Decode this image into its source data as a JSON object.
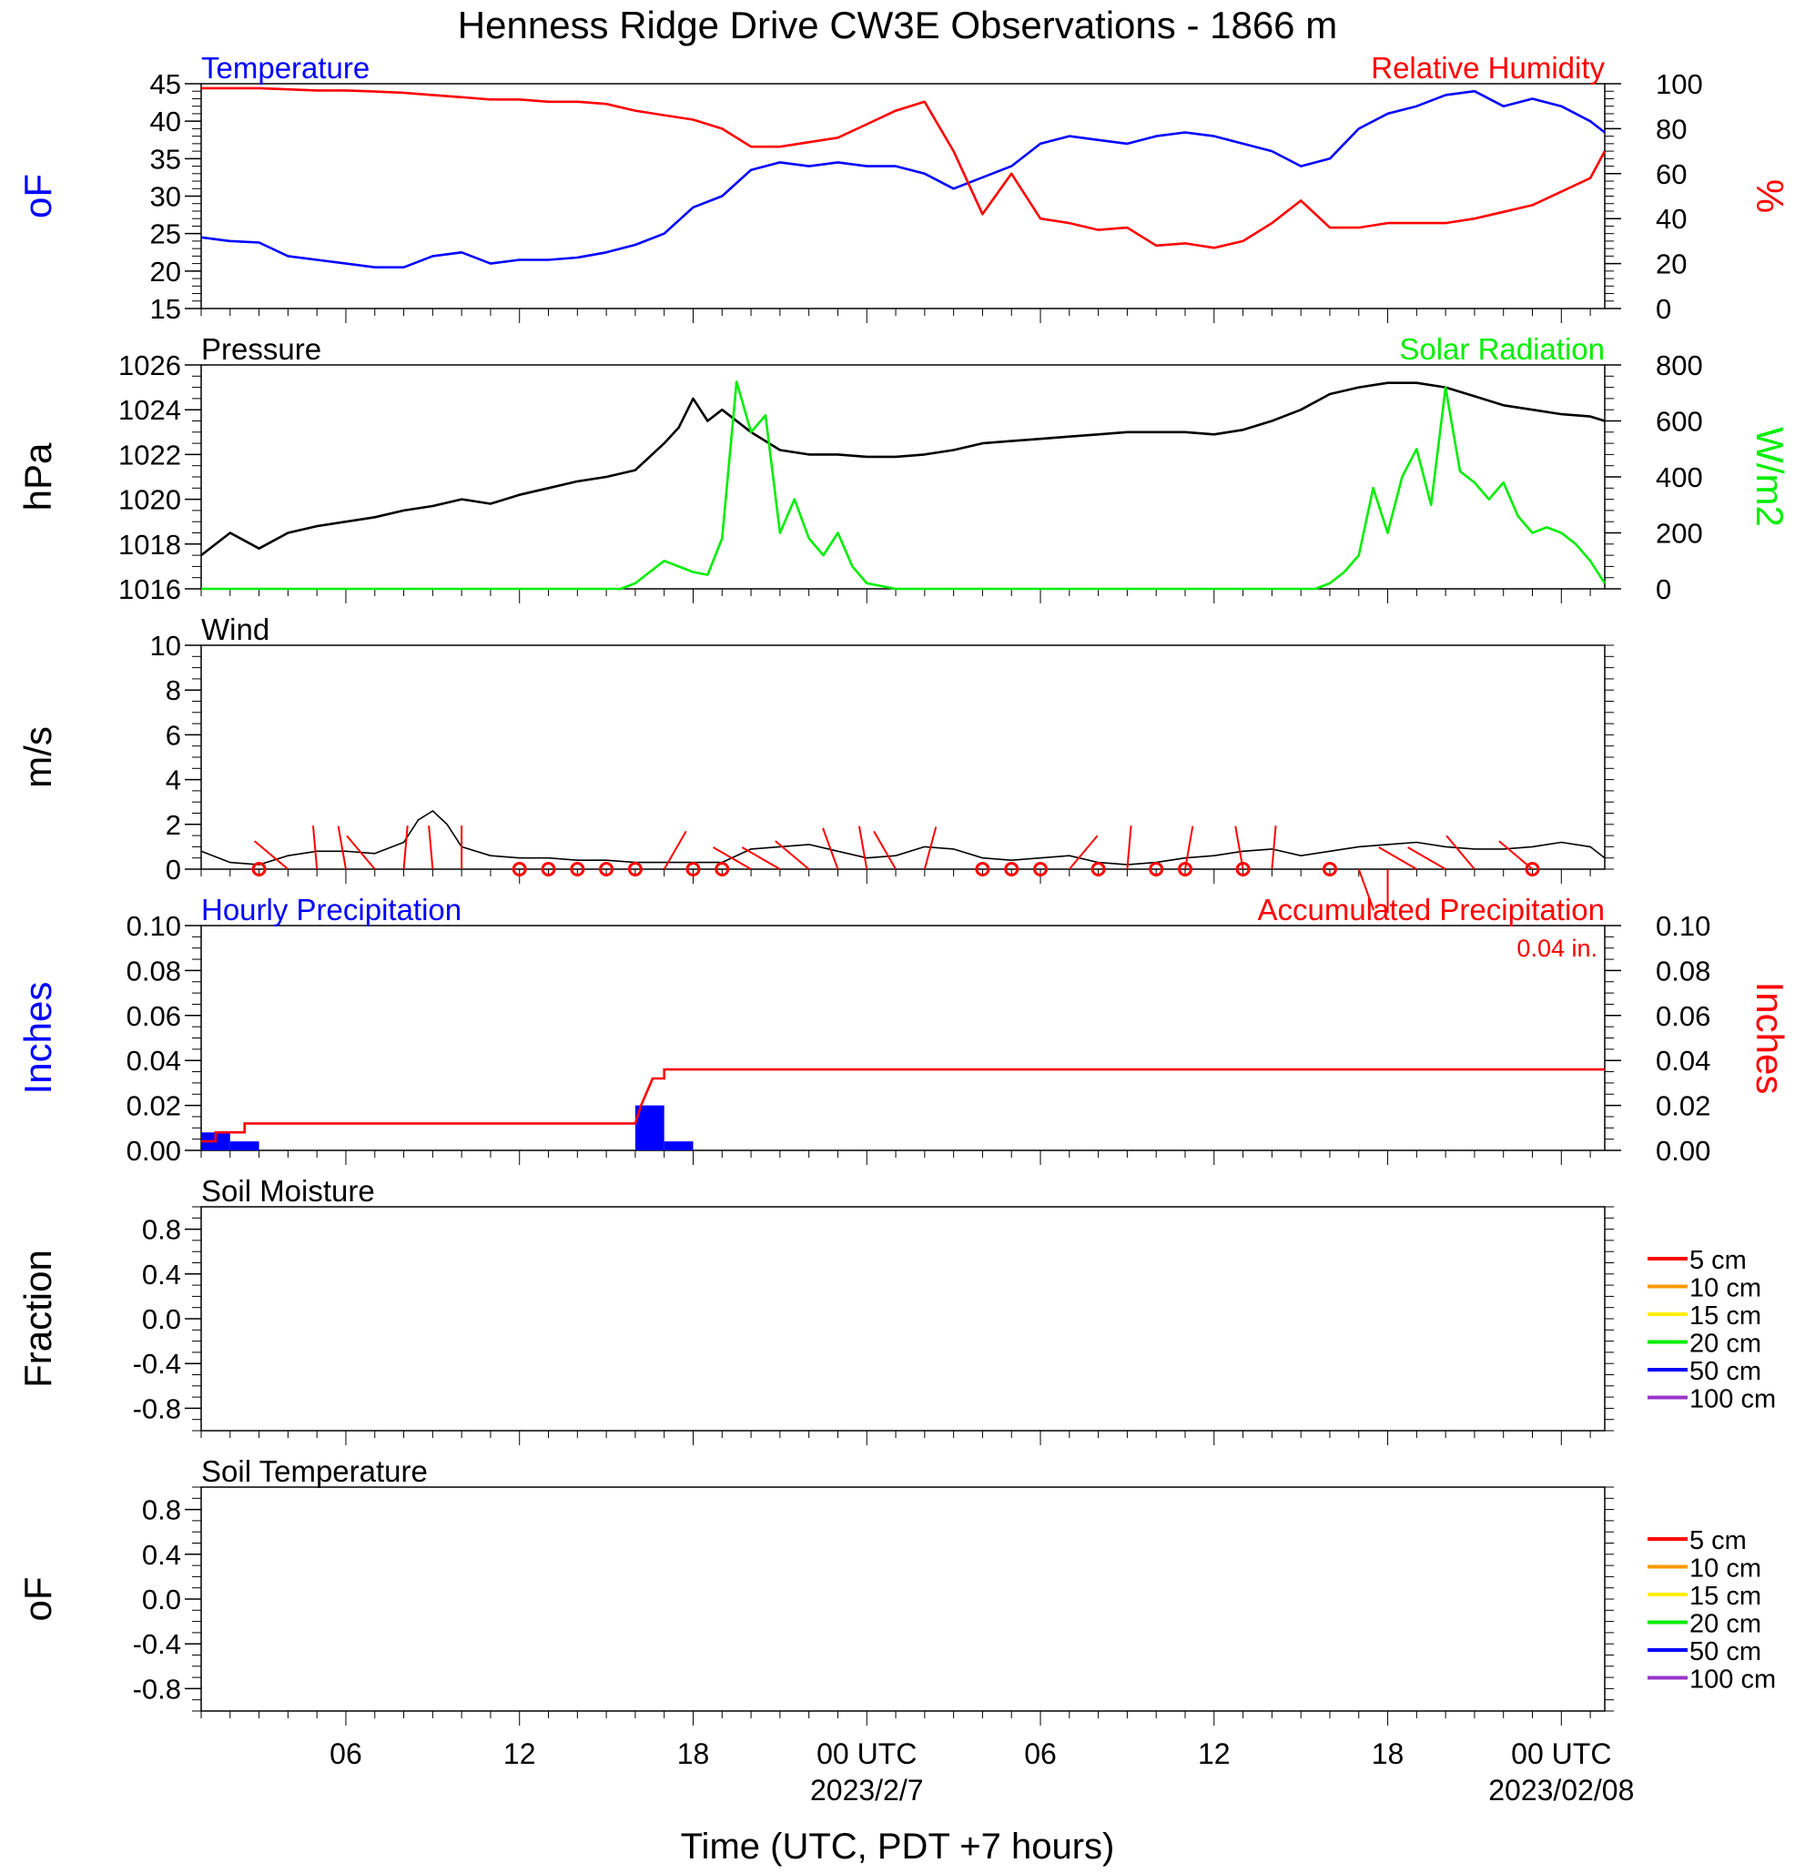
{
  "title": "Henness Ridge Drive CW3E Observations - 1866 m",
  "xlabel": "Time (UTC, PDT +7 hours)",
  "x_axis": {
    "range_hours": [
      0,
      48.5
    ],
    "tick_labels": [
      {
        "hour": 5,
        "label": "06"
      },
      {
        "hour": 11,
        "label": "12"
      },
      {
        "hour": 17,
        "label": "18"
      },
      {
        "hour": 23,
        "label": "00 UTC",
        "date": "2023/2/7"
      },
      {
        "hour": 29,
        "label": "06"
      },
      {
        "hour": 35,
        "label": "12"
      },
      {
        "hour": 41,
        "label": "18"
      },
      {
        "hour": 47,
        "label": "00 UTC",
        "date": "2023/02/08"
      }
    ]
  },
  "colors": {
    "temperature": "#0000ff",
    "humidity": "#ff0000",
    "pressure": "#000000",
    "solar": "#00ee00",
    "wind_speed": "#000000",
    "wind_barb": "#ff0000",
    "hourly_precip": "#0000ff",
    "accum_precip": "#ff0000"
  },
  "chart_data": [
    {
      "type": "line",
      "name": "temperature-humidity",
      "left_title": "Temperature",
      "right_title": "Relative Humidity",
      "left_ylabel": "oF",
      "right_ylabel": "%",
      "left_ylim": [
        15,
        45
      ],
      "right_ylim": [
        0,
        100
      ],
      "left_ticks": [
        "15",
        "20",
        "25",
        "30",
        "35",
        "40",
        "45"
      ],
      "right_ticks": [
        "0",
        "20",
        "40",
        "60",
        "80",
        "100"
      ],
      "series": [
        {
          "name": "Temperature",
          "axis": "left",
          "x": [
            0,
            1,
            2,
            3,
            4,
            5,
            6,
            7,
            8,
            9,
            10,
            11,
            12,
            13,
            14,
            15,
            16,
            17,
            18,
            19,
            20,
            21,
            22,
            23,
            24,
            25,
            26,
            27,
            28,
            29,
            30,
            31,
            32,
            33,
            34,
            35,
            36,
            37,
            38,
            39,
            40,
            41,
            42,
            43,
            44,
            45,
            46,
            47,
            48,
            48.5
          ],
          "y": [
            24.5,
            24,
            23.8,
            22,
            21.5,
            21,
            20.5,
            20.5,
            22,
            22.5,
            21,
            21.5,
            21.5,
            21.8,
            22.5,
            23.5,
            25,
            28.5,
            30,
            33.5,
            34.5,
            34,
            34.5,
            34,
            34,
            33,
            31,
            32.5,
            34,
            37,
            38,
            37.5,
            37,
            38,
            38.5,
            38,
            37,
            36,
            34,
            35,
            39,
            41,
            42,
            43.5,
            44,
            42,
            43,
            42,
            40,
            38.5
          ]
        },
        {
          "name": "Relative Humidity",
          "axis": "right",
          "x": [
            0,
            1,
            2,
            3,
            4,
            5,
            6,
            7,
            8,
            9,
            10,
            11,
            12,
            13,
            14,
            15,
            16,
            17,
            18,
            19,
            20,
            21,
            22,
            23,
            24,
            25,
            26,
            27,
            28,
            29,
            30,
            31,
            32,
            33,
            34,
            35,
            36,
            37,
            38,
            39,
            40,
            41,
            42,
            43,
            44,
            45,
            46,
            47,
            48,
            48.5
          ],
          "y": [
            98,
            98,
            98,
            97.5,
            97,
            97,
            96.5,
            96,
            95,
            94,
            93,
            93,
            92,
            92,
            91,
            88,
            86,
            84,
            80,
            72,
            72,
            74,
            76,
            82,
            88,
            92,
            70,
            42,
            60,
            40,
            38,
            35,
            36,
            28,
            29,
            27,
            30,
            38,
            48,
            36,
            36,
            38,
            38,
            38,
            40,
            43,
            46,
            52,
            58,
            70
          ]
        }
      ]
    },
    {
      "type": "line",
      "name": "pressure-solar",
      "left_title": "Pressure",
      "right_title": "Solar Radiation",
      "left_ylabel": "hPa",
      "right_ylabel": "W/m2",
      "left_ylim": [
        1016,
        1026
      ],
      "right_ylim": [
        0,
        800
      ],
      "left_ticks": [
        "1016",
        "1018",
        "1020",
        "1022",
        "1024",
        "1026"
      ],
      "right_ticks": [
        "0",
        "200",
        "400",
        "600",
        "800"
      ],
      "series": [
        {
          "name": "Pressure",
          "axis": "left",
          "x": [
            0,
            1,
            2,
            3,
            4,
            5,
            6,
            7,
            8,
            9,
            10,
            11,
            12,
            13,
            14,
            15,
            16,
            16.5,
            17,
            17.5,
            18,
            19,
            20,
            21,
            22,
            23,
            24,
            25,
            26,
            27,
            28,
            29,
            30,
            31,
            32,
            33,
            34,
            35,
            36,
            37,
            38,
            39,
            40,
            41,
            42,
            43,
            44,
            45,
            46,
            47,
            48,
            48.5
          ],
          "y": [
            1017.5,
            1018.5,
            1017.8,
            1018.5,
            1018.8,
            1019,
            1019.2,
            1019.5,
            1019.7,
            1020,
            1019.8,
            1020.2,
            1020.5,
            1020.8,
            1021,
            1021.3,
            1022.5,
            1023.2,
            1024.5,
            1023.5,
            1024,
            1023,
            1022.2,
            1022,
            1022,
            1021.9,
            1021.9,
            1022,
            1022.2,
            1022.5,
            1022.6,
            1022.7,
            1022.8,
            1022.9,
            1023,
            1023,
            1023,
            1022.9,
            1023.1,
            1023.5,
            1024,
            1024.7,
            1025,
            1025.2,
            1025.2,
            1025,
            1024.6,
            1024.2,
            1024,
            1023.8,
            1023.7,
            1023.5
          ]
        },
        {
          "name": "Solar Radiation",
          "axis": "right",
          "x": [
            0,
            14.5,
            15,
            15.5,
            16,
            16.5,
            17,
            17.5,
            18,
            18.5,
            19,
            19.5,
            20,
            20.5,
            21,
            21.5,
            22,
            22.5,
            23,
            24,
            38.5,
            39,
            39.5,
            40,
            40.5,
            41,
            41.5,
            42,
            42.5,
            43,
            43.5,
            44,
            44.5,
            45,
            45.5,
            46,
            46.5,
            47,
            47.5,
            48,
            48.5
          ],
          "y": [
            0,
            0,
            20,
            60,
            100,
            80,
            60,
            50,
            180,
            740,
            560,
            620,
            200,
            320,
            180,
            120,
            200,
            80,
            20,
            0,
            0,
            20,
            60,
            120,
            360,
            200,
            400,
            500,
            300,
            720,
            420,
            380,
            320,
            380,
            260,
            200,
            220,
            200,
            160,
            100,
            20
          ]
        }
      ]
    },
    {
      "type": "line",
      "name": "wind",
      "left_title": "Wind",
      "left_ylabel": "m/s",
      "left_ylim": [
        0,
        10
      ],
      "left_ticks": [
        "0",
        "2",
        "4",
        "6",
        "8",
        "10"
      ],
      "series": [
        {
          "name": "Wind",
          "x": [
            0,
            1,
            2,
            3,
            4,
            5,
            6,
            7,
            7.5,
            8,
            8.5,
            9,
            10,
            11,
            12,
            13,
            14,
            15,
            16,
            17,
            18,
            19,
            20,
            21,
            22,
            23,
            24,
            25,
            26,
            27,
            28,
            29,
            30,
            31,
            32,
            33,
            34,
            35,
            36,
            37,
            38,
            39,
            40,
            41,
            42,
            43,
            44,
            45,
            46,
            47,
            48,
            48.5
          ],
          "y": [
            0.8,
            0.3,
            0.2,
            0.6,
            0.8,
            0.8,
            0.7,
            1.2,
            2.2,
            2.6,
            2.0,
            1.0,
            0.6,
            0.5,
            0.5,
            0.4,
            0.4,
            0.3,
            0.3,
            0.3,
            0.3,
            0.9,
            1.0,
            1.1,
            0.8,
            0.5,
            0.6,
            1.0,
            0.9,
            0.5,
            0.4,
            0.5,
            0.6,
            0.3,
            0.2,
            0.3,
            0.5,
            0.6,
            0.8,
            0.9,
            0.6,
            0.8,
            1.0,
            1.1,
            1.2,
            1.0,
            0.9,
            0.9,
            1.0,
            1.2,
            1.0,
            0.5
          ]
        }
      ],
      "calm_hours": [
        2,
        11,
        12,
        13,
        14,
        15,
        17,
        18,
        27,
        28,
        29,
        31,
        33,
        34,
        36,
        39,
        46
      ],
      "barbs": [
        {
          "hour": 3,
          "dir": 310
        },
        {
          "hour": 4,
          "dir": 355
        },
        {
          "hour": 5,
          "dir": 350
        },
        {
          "hour": 6,
          "dir": 320
        },
        {
          "hour": 7,
          "dir": 5
        },
        {
          "hour": 8,
          "dir": 355
        },
        {
          "hour": 9,
          "dir": 360
        },
        {
          "hour": 16,
          "dir": 30
        },
        {
          "hour": 19,
          "dir": 300
        },
        {
          "hour": 20,
          "dir": 300
        },
        {
          "hour": 21,
          "dir": 310
        },
        {
          "hour": 22,
          "dir": 340
        },
        {
          "hour": 23,
          "dir": 350
        },
        {
          "hour": 24,
          "dir": 330
        },
        {
          "hour": 25,
          "dir": 15
        },
        {
          "hour": 30,
          "dir": 40
        },
        {
          "hour": 32,
          "dir": 5
        },
        {
          "hour": 34,
          "dir": 10
        },
        {
          "hour": 36,
          "dir": 350
        },
        {
          "hour": 37,
          "dir": 5
        },
        {
          "hour": 40,
          "dir": 160
        },
        {
          "hour": 41,
          "dir": 180
        },
        {
          "hour": 42,
          "dir": 300
        },
        {
          "hour": 43,
          "dir": 300
        },
        {
          "hour": 44,
          "dir": 320
        },
        {
          "hour": 46,
          "dir": 310
        }
      ]
    },
    {
      "type": "bar",
      "name": "precipitation",
      "left_title": "Hourly Precipitation",
      "right_title": "Accumulated Precipitation",
      "total_label": "0.04 in.",
      "left_ylabel": "Inches",
      "right_ylabel": "Inches",
      "left_ylim": [
        0,
        0.1
      ],
      "right_ylim": [
        0,
        0.1
      ],
      "left_ticks": [
        "0.00",
        "0.02",
        "0.04",
        "0.06",
        "0.08",
        "0.10"
      ],
      "right_ticks": [
        "0.00",
        "0.02",
        "0.04",
        "0.06",
        "0.08",
        "0.10"
      ],
      "hourly_bars": [
        {
          "hour": 0,
          "value": 0.008
        },
        {
          "hour": 1,
          "value": 0.004
        },
        {
          "hour": 15,
          "value": 0.02
        },
        {
          "hour": 16,
          "value": 0.004
        }
      ],
      "accumulated": {
        "x": [
          0,
          0.5,
          1.5,
          30,
          15,
          15.3,
          16,
          48.5
        ],
        "y": [
          0.004,
          0.008,
          0.012,
          0.012,
          0.012,
          0.02,
          0.036,
          0.036
        ]
      }
    },
    {
      "type": "line",
      "name": "soil-moisture",
      "left_title": "Soil Moisture",
      "left_ylabel": "Fraction",
      "left_ylim": [
        -1,
        1
      ],
      "left_ticks": [
        "-0.8",
        "-0.4",
        "0.0",
        "0.4",
        "0.8"
      ],
      "legend": [
        "5 cm",
        "10 cm",
        "15 cm",
        "20 cm",
        "50 cm",
        "100 cm"
      ]
    },
    {
      "type": "line",
      "name": "soil-temperature",
      "left_title": "Soil Temperature",
      "left_ylabel": "oF",
      "left_ylim": [
        -1,
        1
      ],
      "left_ticks": [
        "-0.8",
        "-0.4",
        "0.0",
        "0.4",
        "0.8"
      ],
      "legend": [
        "5 cm",
        "10 cm",
        "15 cm",
        "20 cm",
        "50 cm",
        "100 cm"
      ]
    }
  ],
  "legend_colors": [
    "#ff0000",
    "#ff9900",
    "#ffee00",
    "#00ee00",
    "#0000ff",
    "#9933cc"
  ]
}
